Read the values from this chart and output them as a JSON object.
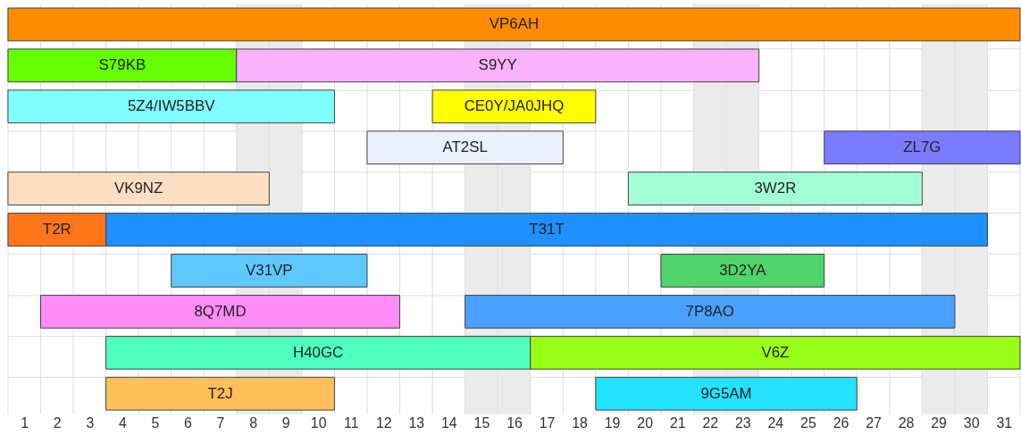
{
  "chart_data": {
    "type": "bar",
    "orientation": "horizontal",
    "grid": true,
    "categories": [
      null,
      null,
      null,
      null,
      null,
      null,
      null,
      null,
      null,
      null
    ],
    "xlim": [
      0.5,
      31.5
    ],
    "xticks": [
      {
        "value": 0.5,
        "label": null
      },
      1,
      {
        "value": 1.5,
        "label": null
      },
      2,
      {
        "value": 2.5,
        "label": null
      },
      3,
      {
        "value": 3.5,
        "label": null
      },
      4,
      {
        "value": 4.5,
        "label": null
      },
      5,
      {
        "value": 5.5,
        "label": null
      },
      6,
      {
        "value": 6.5,
        "label": null
      },
      7,
      {
        "value": 7.5,
        "label": null
      },
      8,
      {
        "value": 8.5,
        "label": null
      },
      9,
      {
        "value": 9.5,
        "label": null
      },
      10,
      {
        "value": 10.5,
        "label": null
      },
      11,
      {
        "value": 11.5,
        "label": null
      },
      12,
      {
        "value": 12.5,
        "label": null
      },
      13,
      {
        "value": 13.5,
        "label": null
      },
      14,
      {
        "value": 14.5,
        "label": null
      },
      15,
      {
        "value": 15.5,
        "label": null
      },
      16,
      {
        "value": 16.5,
        "label": null
      },
      17,
      {
        "value": 17.5,
        "label": null
      },
      18,
      {
        "value": 18.5,
        "label": null
      },
      19,
      {
        "value": 19.5,
        "label": null
      },
      20,
      {
        "value": 20.5,
        "label": null
      },
      21,
      {
        "value": 21.5,
        "label": null
      },
      22,
      {
        "value": 22.5,
        "label": null
      },
      23,
      {
        "value": 23.5,
        "label": null
      },
      24,
      {
        "value": 24.5,
        "label": null
      },
      25,
      {
        "value": 25.5,
        "label": null
      },
      26,
      {
        "value": 26.5,
        "label": null
      },
      27,
      {
        "value": 27.5,
        "label": null
      },
      28,
      {
        "value": 28.5,
        "label": null
      },
      29,
      {
        "value": 29.5,
        "label": null
      },
      30,
      {
        "value": 30.5,
        "label": null
      },
      31,
      {
        "value": 31.5,
        "label": null
      }
    ],
    "bands": [
      {
        "axis": "x",
        "from": 7.5,
        "to": 9.5,
        "color": "#ebebeb"
      },
      {
        "axis": "x",
        "from": 14.5,
        "to": 16.5,
        "color": "#ebebeb"
      },
      {
        "axis": "x",
        "from": 21.5,
        "to": 23.5,
        "color": "#ebebeb"
      },
      {
        "axis": "x",
        "from": 28.5,
        "to": 30.5,
        "color": "#ebebeb"
      }
    ],
    "series": [
      {
        "name": "VP6AH",
        "color": "#ff8c00",
        "values": [
          31,
          null,
          null,
          null,
          null,
          null,
          null,
          null,
          null,
          null
        ],
        "base": [
          0.5,
          null,
          null,
          null,
          null,
          null,
          null,
          null,
          null,
          null
        ]
      },
      {
        "name": "S79KB",
        "color": "#66ff00",
        "values": [
          null,
          7,
          null,
          null,
          null,
          null,
          null,
          null,
          null,
          null
        ],
        "base": [
          null,
          0.5,
          null,
          null,
          null,
          null,
          null,
          null,
          null,
          null
        ]
      },
      {
        "name": "S9YY",
        "color": "#f9b3ff",
        "values": [
          null,
          16,
          null,
          null,
          null,
          null,
          null,
          null,
          null,
          null
        ],
        "base": [
          null,
          7.5,
          null,
          null,
          null,
          null,
          null,
          null,
          null,
          null
        ]
      },
      {
        "name": "5Z4/IW5BBV",
        "color": "#80ffff",
        "values": [
          null,
          null,
          10,
          null,
          null,
          null,
          null,
          null,
          null,
          null
        ],
        "base": [
          null,
          null,
          0.5,
          null,
          null,
          null,
          null,
          null,
          null,
          null
        ]
      },
      {
        "name": "CE0Y/JA0JHQ",
        "color": "#ffff00",
        "values": [
          null,
          null,
          5,
          null,
          null,
          null,
          null,
          null,
          null,
          null
        ],
        "base": [
          null,
          null,
          13.5,
          null,
          null,
          null,
          null,
          null,
          null,
          null
        ]
      },
      {
        "name": "AT2SL",
        "color": "#eaf0fc",
        "values": [
          null,
          null,
          null,
          6,
          null,
          null,
          null,
          null,
          null,
          null
        ],
        "base": [
          null,
          null,
          null,
          11.5,
          null,
          null,
          null,
          null,
          null,
          null
        ]
      },
      {
        "name": "ZL7G",
        "color": "#7b7bff",
        "values": [
          null,
          null,
          null,
          6,
          null,
          null,
          null,
          null,
          null,
          null
        ],
        "base": [
          null,
          null,
          null,
          25.5,
          null,
          null,
          null,
          null,
          null,
          null
        ]
      },
      {
        "name": "VK9NZ",
        "color": "#ffdfc4",
        "values": [
          null,
          null,
          null,
          null,
          8,
          null,
          null,
          null,
          null,
          null
        ],
        "base": [
          null,
          null,
          null,
          null,
          0.5,
          null,
          null,
          null,
          null,
          null
        ]
      },
      {
        "name": "3W2R",
        "color": "#a3ffd6",
        "values": [
          null,
          null,
          null,
          null,
          9,
          null,
          null,
          null,
          null,
          null
        ],
        "base": [
          null,
          null,
          null,
          null,
          19.5,
          null,
          null,
          null,
          null,
          null
        ]
      },
      {
        "name": "T2R",
        "color": "#ff7519",
        "values": [
          null,
          null,
          null,
          null,
          null,
          3,
          null,
          null,
          null,
          null
        ],
        "base": [
          null,
          null,
          null,
          null,
          null,
          0.5,
          null,
          null,
          null,
          null
        ]
      },
      {
        "name": "T31T",
        "color": "#1e90ff",
        "values": [
          null,
          null,
          null,
          null,
          null,
          27,
          null,
          null,
          null,
          null
        ],
        "base": [
          null,
          null,
          null,
          null,
          null,
          3.5,
          null,
          null,
          null,
          null
        ]
      },
      {
        "name": "V31VP",
        "color": "#5cc8ff",
        "values": [
          null,
          null,
          null,
          null,
          null,
          null,
          6,
          null,
          null,
          null
        ],
        "base": [
          null,
          null,
          null,
          null,
          null,
          null,
          5.5,
          null,
          null,
          null
        ]
      },
      {
        "name": "3D2YA",
        "color": "#4fd36b",
        "values": [
          null,
          null,
          null,
          null,
          null,
          null,
          5,
          null,
          null,
          null
        ],
        "base": [
          null,
          null,
          null,
          null,
          null,
          null,
          20.5,
          null,
          null,
          null
        ]
      },
      {
        "name": "8Q7MD",
        "color": "#ff8cf7",
        "values": [
          null,
          null,
          null,
          null,
          null,
          null,
          null,
          11,
          null,
          null
        ],
        "base": [
          null,
          null,
          null,
          null,
          null,
          null,
          null,
          1.5,
          null,
          null
        ]
      },
      {
        "name": "7P8AO",
        "color": "#4aa0ff",
        "values": [
          null,
          null,
          null,
          null,
          null,
          null,
          null,
          15,
          null,
          null
        ],
        "base": [
          null,
          null,
          null,
          null,
          null,
          null,
          null,
          14.5,
          null,
          null
        ]
      },
      {
        "name": "H40GC",
        "color": "#4fffbf",
        "values": [
          null,
          null,
          null,
          null,
          null,
          null,
          null,
          null,
          13,
          null
        ],
        "base": [
          null,
          null,
          null,
          null,
          null,
          null,
          null,
          null,
          3.5,
          null
        ]
      },
      {
        "name": "V6Z",
        "color": "#99ff19",
        "values": [
          null,
          null,
          null,
          null,
          null,
          null,
          null,
          null,
          15,
          null
        ],
        "base": [
          null,
          null,
          null,
          null,
          null,
          null,
          null,
          null,
          16.5,
          null
        ]
      },
      {
        "name": "T2J",
        "color": "#ffbf59",
        "values": [
          null,
          null,
          null,
          null,
          null,
          null,
          null,
          null,
          null,
          7
        ],
        "base": [
          null,
          null,
          null,
          null,
          null,
          null,
          null,
          null,
          null,
          3.5
        ]
      },
      {
        "name": "9G5AM",
        "color": "#23e3ff",
        "values": [
          null,
          null,
          null,
          null,
          null,
          null,
          null,
          null,
          null,
          8
        ],
        "base": [
          null,
          null,
          null,
          null,
          null,
          null,
          null,
          null,
          null,
          18.5
        ]
      }
    ]
  }
}
